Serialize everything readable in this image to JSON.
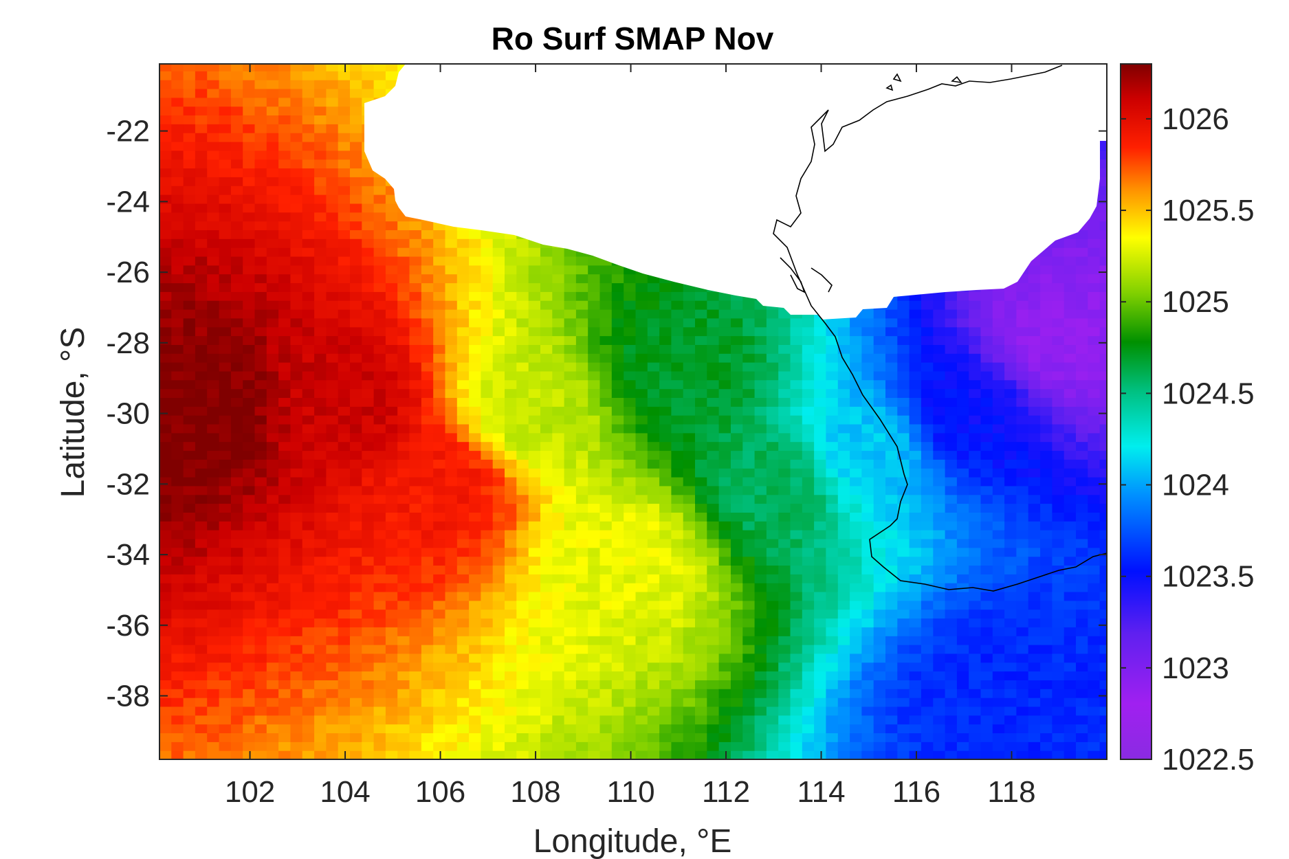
{
  "chart_data": {
    "type": "heatmap",
    "title": "Ro Surf SMAP Nov",
    "xlabel": "Longitude, °E",
    "ylabel": "Latitude, °S",
    "xlim": [
      100.1,
      120
    ],
    "ylim": [
      -39.8,
      -20.1
    ],
    "xticks": [
      102,
      104,
      106,
      108,
      110,
      112,
      114,
      116,
      118
    ],
    "xtick_labels": [
      "102",
      "104",
      "106",
      "108",
      "110",
      "112",
      "114",
      "116",
      "118"
    ],
    "yticks": [
      -22,
      -24,
      -26,
      -28,
      -30,
      -32,
      -34,
      -36,
      -38
    ],
    "ytick_labels": [
      "-22",
      "-24",
      "-26",
      "-28",
      "-30",
      "-32",
      "-34",
      "-36",
      "-38"
    ],
    "colorbar": {
      "range": [
        1022.5,
        1026.3
      ],
      "ticks": [
        1022.5,
        1023,
        1023.5,
        1024,
        1024.5,
        1025,
        1025.5,
        1026
      ],
      "tick_labels": [
        "1022.5",
        "1023",
        "1023.5",
        "1024",
        "1024.5",
        "1025",
        "1025.5",
        "1026"
      ],
      "colormap": "jet-like (purple-blue-cyan-green-yellow-red-darkred)"
    },
    "grid": false,
    "field_description_points": [
      {
        "lon": 101,
        "lat": -30,
        "value": 1026.3
      },
      {
        "lon": 104,
        "lat": -30,
        "value": 1026.1
      },
      {
        "lon": 106,
        "lat": -32,
        "value": 1025.9
      },
      {
        "lon": 108,
        "lat": -30,
        "value": 1025.2
      },
      {
        "lon": 110,
        "lat": -34,
        "value": 1025.3
      },
      {
        "lon": 111,
        "lat": -29,
        "value": 1024.7
      },
      {
        "lon": 113,
        "lat": -32,
        "value": 1024.6
      },
      {
        "lon": 115,
        "lat": -31,
        "value": 1024.1
      },
      {
        "lon": 117,
        "lat": -30,
        "value": 1023.5
      },
      {
        "lon": 119,
        "lat": -28,
        "value": 1022.9
      },
      {
        "lon": 118,
        "lat": -38,
        "value": 1023.6
      }
    ]
  }
}
